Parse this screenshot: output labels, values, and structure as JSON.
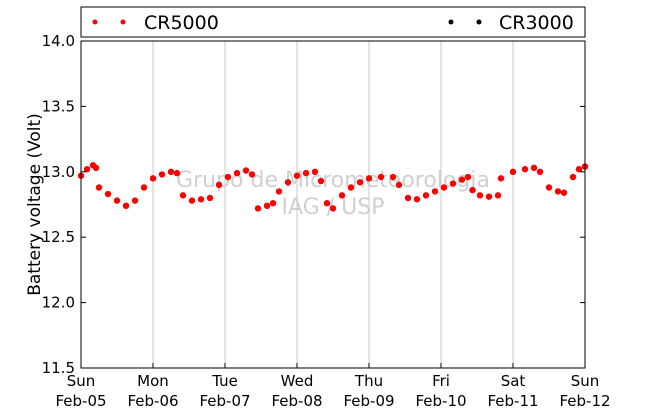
{
  "chart_data": {
    "type": "scatter",
    "ylabel": "Battery voltage (Volt)",
    "ylim": [
      11.5,
      14.0
    ],
    "yticks": [
      "11.5",
      "12.0",
      "12.5",
      "13.0",
      "13.5",
      "14.0"
    ],
    "xlim": [
      "2012-02-05",
      "2012-02-12"
    ],
    "xticks": [
      {
        "day": "Sun",
        "date": "Feb-05"
      },
      {
        "day": "Mon",
        "date": "Feb-06"
      },
      {
        "day": "Tue",
        "date": "Feb-07"
      },
      {
        "day": "Wed",
        "date": "Feb-08"
      },
      {
        "day": "Thu",
        "date": "Feb-09"
      },
      {
        "day": "Fri",
        "date": "Feb-10"
      },
      {
        "day": "Sat",
        "date": "Feb-11"
      },
      {
        "day": "Sun",
        "date": "Feb-12"
      }
    ],
    "grid": "vertical",
    "legend": {
      "placement": "top",
      "items": [
        {
          "name": "CR5000",
          "color": "#ff0000"
        },
        {
          "name": "CR3000",
          "color": "#000000"
        }
      ]
    },
    "series": [
      {
        "name": "CR5000",
        "color": "#ff0000",
        "points": [
          [
            "2012-02-05 00:00",
            12.97
          ],
          [
            "2012-02-05 02:00",
            13.02
          ],
          [
            "2012-02-05 04:00",
            13.05
          ],
          [
            "2012-02-05 05:00",
            13.03
          ],
          [
            "2012-02-05 06:00",
            12.88
          ],
          [
            "2012-02-05 09:00",
            12.83
          ],
          [
            "2012-02-05 12:00",
            12.78
          ],
          [
            "2012-02-05 15:00",
            12.74
          ],
          [
            "2012-02-05 18:00",
            12.78
          ],
          [
            "2012-02-05 21:00",
            12.88
          ],
          [
            "2012-02-06 00:00",
            12.95
          ],
          [
            "2012-02-06 03:00",
            12.98
          ],
          [
            "2012-02-06 06:00",
            13.0
          ],
          [
            "2012-02-06 08:00",
            12.99
          ],
          [
            "2012-02-06 10:00",
            12.82
          ],
          [
            "2012-02-06 13:00",
            12.78
          ],
          [
            "2012-02-06 16:00",
            12.79
          ],
          [
            "2012-02-06 19:00",
            12.8
          ],
          [
            "2012-02-06 22:00",
            12.9
          ],
          [
            "2012-02-07 01:00",
            12.96
          ],
          [
            "2012-02-07 04:00",
            12.99
          ],
          [
            "2012-02-07 07:00",
            13.01
          ],
          [
            "2012-02-07 09:00",
            12.98
          ],
          [
            "2012-02-07 11:00",
            12.72
          ],
          [
            "2012-02-07 14:00",
            12.74
          ],
          [
            "2012-02-07 16:00",
            12.76
          ],
          [
            "2012-02-07 18:00",
            12.85
          ],
          [
            "2012-02-07 21:00",
            12.92
          ],
          [
            "2012-02-08 00:00",
            12.97
          ],
          [
            "2012-02-08 03:00",
            12.99
          ],
          [
            "2012-02-08 06:00",
            13.0
          ],
          [
            "2012-02-08 08:00",
            12.93
          ],
          [
            "2012-02-08 10:00",
            12.76
          ],
          [
            "2012-02-08 12:00",
            12.72
          ],
          [
            "2012-02-08 15:00",
            12.82
          ],
          [
            "2012-02-08 18:00",
            12.88
          ],
          [
            "2012-02-08 21:00",
            12.92
          ],
          [
            "2012-02-09 00:00",
            12.95
          ],
          [
            "2012-02-09 04:00",
            12.96
          ],
          [
            "2012-02-09 08:00",
            12.96
          ],
          [
            "2012-02-09 10:00",
            12.9
          ],
          [
            "2012-02-09 13:00",
            12.8
          ],
          [
            "2012-02-09 16:00",
            12.79
          ],
          [
            "2012-02-09 19:00",
            12.82
          ],
          [
            "2012-02-09 22:00",
            12.85
          ],
          [
            "2012-02-10 01:00",
            12.88
          ],
          [
            "2012-02-10 04:00",
            12.91
          ],
          [
            "2012-02-10 07:00",
            12.94
          ],
          [
            "2012-02-10 09:00",
            12.96
          ],
          [
            "2012-02-10 10:30",
            12.86
          ],
          [
            "2012-02-10 13:00",
            12.82
          ],
          [
            "2012-02-10 16:00",
            12.81
          ],
          [
            "2012-02-10 19:00",
            12.82
          ],
          [
            "2012-02-10 20:00",
            12.95
          ],
          [
            "2012-02-11 00:00",
            13.0
          ],
          [
            "2012-02-11 04:00",
            13.02
          ],
          [
            "2012-02-11 07:00",
            13.03
          ],
          [
            "2012-02-11 09:00",
            13.0
          ],
          [
            "2012-02-11 12:00",
            12.88
          ],
          [
            "2012-02-11 15:00",
            12.85
          ],
          [
            "2012-02-11 17:00",
            12.84
          ],
          [
            "2012-02-11 20:00",
            12.96
          ],
          [
            "2012-02-11 22:00",
            13.02
          ],
          [
            "2012-02-12 00:00",
            13.04
          ]
        ]
      },
      {
        "name": "CR3000",
        "color": "#000000",
        "points": []
      }
    ]
  },
  "watermark": {
    "line1": "Grupo de Micrometeorologia",
    "line2": "IAG / USP"
  }
}
